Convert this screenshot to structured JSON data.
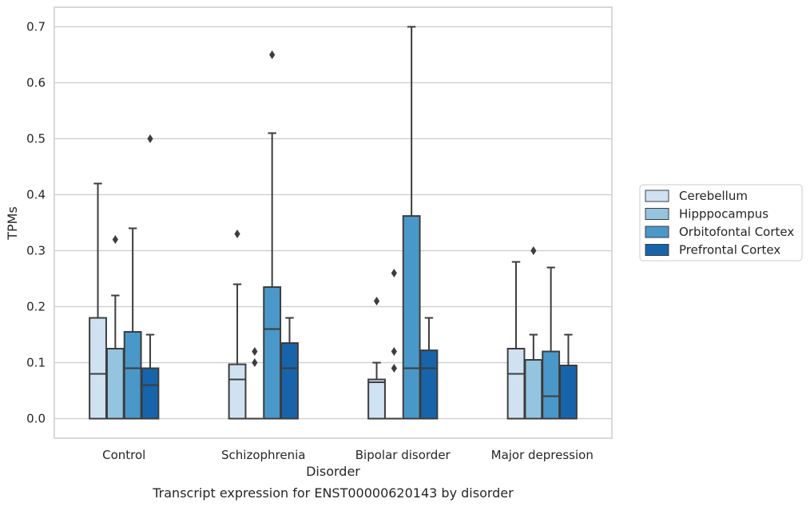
{
  "caption": "Transcript expression for ENST00000620143 by disorder",
  "chart_data": {
    "type": "box",
    "xlabel": "Disorder",
    "ylabel": "TPMs",
    "ylim": [
      -0.035,
      0.735
    ],
    "yticks": [
      0.0,
      0.1,
      0.2,
      0.3,
      0.4,
      0.5,
      0.6,
      0.7
    ],
    "ytick_labels": [
      "0.0",
      "0.1",
      "0.2",
      "0.3",
      "0.4",
      "0.5",
      "0.6",
      "0.7"
    ],
    "grid": "horizontal",
    "legend_position": "right",
    "categories": [
      "Control",
      "Schizophrenia",
      "Bipolar disorder",
      "Major depression"
    ],
    "series": [
      {
        "name": "Cerebellum",
        "color": "#d0e1f2",
        "boxes": [
          {
            "q1": 0.0,
            "median": 0.08,
            "q3": 0.18,
            "whisker_low": 0.0,
            "whisker_high": 0.42,
            "outliers": []
          },
          {
            "q1": 0.0,
            "median": 0.07,
            "q3": 0.097,
            "whisker_low": 0.0,
            "whisker_high": 0.24,
            "outliers": [
              0.33
            ]
          },
          {
            "q1": 0.0,
            "median": 0.065,
            "q3": 0.07,
            "whisker_low": 0.0,
            "whisker_high": 0.1,
            "outliers": [
              0.21
            ]
          },
          {
            "q1": 0.0,
            "median": 0.08,
            "q3": 0.125,
            "whisker_low": 0.0,
            "whisker_high": 0.28,
            "outliers": []
          }
        ]
      },
      {
        "name": "Hipppocampus",
        "color": "#94c4df",
        "boxes": [
          {
            "q1": 0.0,
            "median": 0.0,
            "q3": 0.125,
            "whisker_low": 0.0,
            "whisker_high": 0.22,
            "outliers": [
              0.32
            ]
          },
          {
            "q1": 0.0,
            "median": 0.0,
            "q3": 0.0,
            "whisker_low": 0.0,
            "whisker_high": 0.0,
            "outliers": [
              0.1,
              0.12
            ]
          },
          {
            "q1": 0.0,
            "median": 0.0,
            "q3": 0.0,
            "whisker_low": 0.0,
            "whisker_high": 0.0,
            "outliers": [
              0.09,
              0.12,
              0.26
            ]
          },
          {
            "q1": 0.0,
            "median": 0.0,
            "q3": 0.105,
            "whisker_low": 0.0,
            "whisker_high": 0.15,
            "outliers": [
              0.3
            ]
          }
        ]
      },
      {
        "name": "Orbitofontal Cortex",
        "color": "#4a98c9",
        "boxes": [
          {
            "q1": 0.0,
            "median": 0.09,
            "q3": 0.155,
            "whisker_low": 0.0,
            "whisker_high": 0.34,
            "outliers": []
          },
          {
            "q1": 0.0,
            "median": 0.16,
            "q3": 0.235,
            "whisker_low": 0.0,
            "whisker_high": 0.51,
            "outliers": [
              0.65
            ]
          },
          {
            "q1": 0.0,
            "median": 0.09,
            "q3": 0.362,
            "whisker_low": 0.0,
            "whisker_high": 0.7,
            "outliers": []
          },
          {
            "q1": 0.0,
            "median": 0.04,
            "q3": 0.12,
            "whisker_low": 0.0,
            "whisker_high": 0.27,
            "outliers": []
          }
        ]
      },
      {
        "name": "Prefrontal Cortex",
        "color": "#1764ab",
        "boxes": [
          {
            "q1": 0.0,
            "median": 0.06,
            "q3": 0.09,
            "whisker_low": 0.0,
            "whisker_high": 0.15,
            "outliers": [
              0.5
            ]
          },
          {
            "q1": 0.0,
            "median": 0.09,
            "q3": 0.135,
            "whisker_low": 0.0,
            "whisker_high": 0.18,
            "outliers": []
          },
          {
            "q1": 0.0,
            "median": 0.09,
            "q3": 0.122,
            "whisker_low": 0.0,
            "whisker_high": 0.18,
            "outliers": []
          },
          {
            "q1": 0.0,
            "median": 0.0,
            "q3": 0.095,
            "whisker_low": 0.0,
            "whisker_high": 0.15,
            "outliers": []
          }
        ]
      }
    ]
  },
  "colors": {
    "grid": "#cccccc",
    "frame": "#cccccc",
    "box_edge": "#3d3d3d",
    "text": "#262626"
  }
}
